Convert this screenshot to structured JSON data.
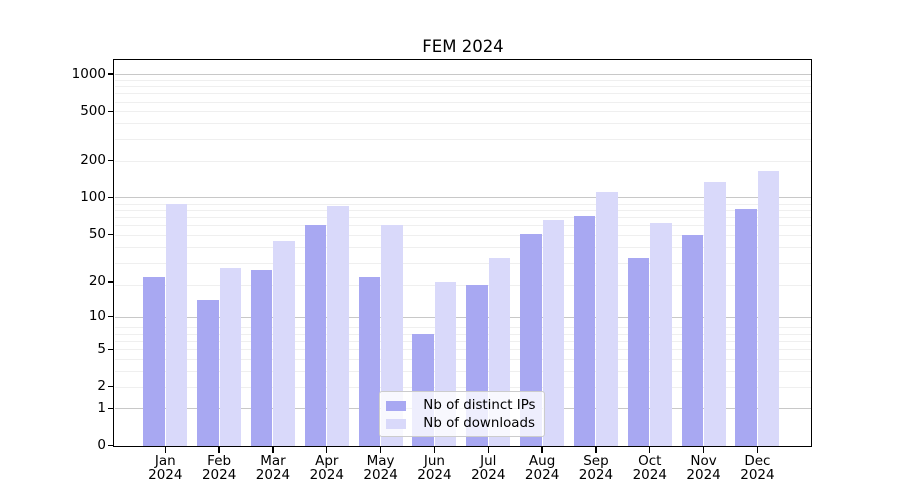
{
  "figure": {
    "background": "#ffffff",
    "spine_color": "#000000"
  },
  "chart_data": {
    "type": "bar",
    "title": "FEM 2024",
    "categories": [
      "Jan 2024",
      "Feb 2024",
      "Mar 2024",
      "Apr 2024",
      "May 2024",
      "Jun 2024",
      "Jul 2024",
      "Aug 2024",
      "Sep 2024",
      "Oct 2024",
      "Nov 2024",
      "Dec 2024"
    ],
    "series": [
      {
        "name": "Nb of distinct IPs",
        "color": "#a8a8f2",
        "values": [
          22,
          14,
          25,
          59,
          22,
          7,
          19,
          50,
          70,
          32,
          49,
          80
        ]
      },
      {
        "name": "Nb of downloads",
        "color": "#d9d9fa",
        "values": [
          89,
          26,
          44,
          85,
          59,
          20,
          32,
          65,
          110,
          62,
          134,
          165
        ]
      }
    ],
    "xlabel": "",
    "ylabel": "",
    "y_axis": {
      "scale": "log10(value+1)",
      "tick_values": [
        0,
        1,
        2,
        5,
        10,
        20,
        50,
        100,
        200,
        500,
        1000
      ],
      "tick_labels": [
        "0",
        "1",
        "2",
        "5",
        "10",
        "20",
        "50",
        "100",
        "200",
        "500",
        "1000"
      ],
      "major_grid_values": [
        1,
        10,
        100,
        1000
      ],
      "ylim": [
        0,
        1288
      ],
      "grid": true
    },
    "legend": {
      "position": "lower center",
      "frame": true
    }
  }
}
